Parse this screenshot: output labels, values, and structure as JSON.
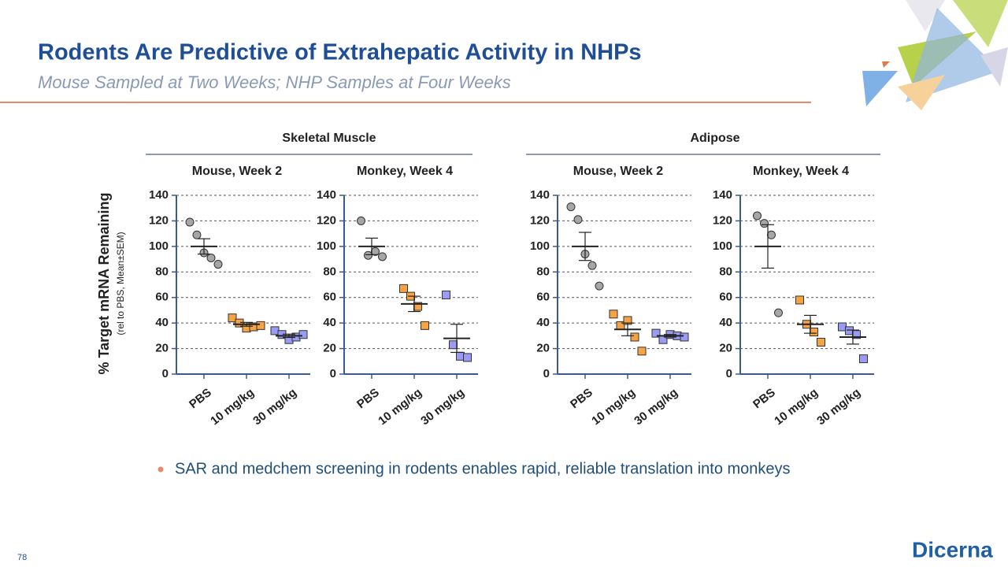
{
  "title": "Rodents Are Predictive of Extrahepatic Activity in NHPs",
  "subtitle": "Mouse Sampled at Two Weeks; NHP Samples at Four Weeks",
  "groups": [
    "Skeletal Muscle",
    "Adipose"
  ],
  "y_label": "% Target mRNA Remaining",
  "y_sublabel": "(rel to PBS, Mean±SEM)",
  "bullet": "SAR and medchem screening in rodents enables rapid, reliable translation into monkeys",
  "page_number": "78",
  "logo": "Dicerna",
  "chart_data": [
    {
      "type": "dot",
      "title": "Mouse, Week 2",
      "categories": [
        "PBS",
        "10 mg/kg",
        "30 mg/kg"
      ],
      "colors": [
        "#a6a6a6",
        "#f7a343",
        "#9b9bf5"
      ],
      "markers": [
        "circle",
        "square",
        "square"
      ],
      "points": [
        [
          119,
          109,
          95,
          91,
          86
        ],
        [
          44,
          40,
          36,
          37,
          38
        ],
        [
          34,
          31,
          27,
          29,
          31
        ]
      ],
      "means": [
        100,
        39,
        30
      ],
      "sems": [
        6,
        1.5,
        1.3
      ],
      "ylim": [
        0,
        140
      ],
      "yticks": [
        0,
        20,
        40,
        60,
        80,
        100,
        120,
        140
      ],
      "grid": true
    },
    {
      "type": "dot",
      "title": "Monkey, Week 4",
      "categories": [
        "PBS",
        "10 mg/kg",
        "30 mg/kg"
      ],
      "colors": [
        "#a6a6a6",
        "#f7a343",
        "#9b9bf5"
      ],
      "markers": [
        "circle",
        "square",
        "square"
      ],
      "points": [
        [
          120,
          93,
          96,
          92
        ],
        [
          67,
          61,
          53,
          38
        ],
        [
          62,
          23,
          14,
          13
        ]
      ],
      "means": [
        100,
        55,
        28
      ],
      "sems": [
        6.5,
        6,
        11
      ],
      "ylim": [
        0,
        140
      ],
      "yticks": [
        0,
        20,
        40,
        60,
        80,
        100,
        120,
        140
      ],
      "grid": true
    },
    {
      "type": "dot",
      "title": "Mouse, Week 2",
      "categories": [
        "PBS",
        "10 mg/kg",
        "30 mg/kg"
      ],
      "colors": [
        "#a6a6a6",
        "#f7a343",
        "#9b9bf5"
      ],
      "markers": [
        "circle",
        "square",
        "square"
      ],
      "points": [
        [
          131,
          121,
          94,
          85,
          69
        ],
        [
          47,
          38,
          42,
          29,
          18
        ],
        [
          32,
          27,
          31,
          30,
          29
        ]
      ],
      "means": [
        100,
        35,
        30
      ],
      "sems": [
        11,
        5,
        1
      ],
      "ylim": [
        0,
        140
      ],
      "yticks": [
        0,
        20,
        40,
        60,
        80,
        100,
        120,
        140
      ],
      "grid": true
    },
    {
      "type": "dot",
      "title": "Monkey, Week 4",
      "categories": [
        "PBS",
        "10 mg/kg",
        "30 mg/kg"
      ],
      "colors": [
        "#a6a6a6",
        "#f7a343",
        "#9b9bf5"
      ],
      "markers": [
        "circle",
        "square",
        "square"
      ],
      "points": [
        [
          124,
          118,
          109,
          48
        ],
        [
          58,
          39,
          33,
          25
        ],
        [
          37,
          34,
          31,
          12
        ]
      ],
      "means": [
        100,
        39,
        29
      ],
      "sems": [
        17,
        7,
        5.5
      ],
      "ylim": [
        0,
        140
      ],
      "yticks": [
        0,
        20,
        40,
        60,
        80,
        100,
        120,
        140
      ],
      "grid": true
    }
  ]
}
